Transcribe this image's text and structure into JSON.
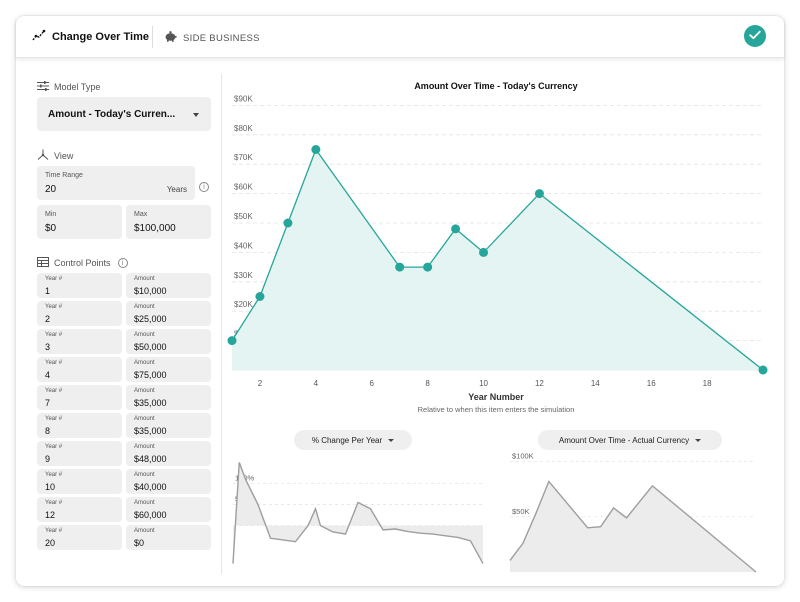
{
  "header": {
    "main_tab_label": "Change Over Time",
    "main_tab_icon": "trend-line-icon",
    "side_tab_label": "SIDE BUSINESS",
    "side_tab_icon": "piggy-bank-icon",
    "confirm_icon": "check-icon"
  },
  "colors": {
    "accent": "#26a69a",
    "accent_fill": "#e4f4f2",
    "field_bg": "#efefef",
    "mini_line": "#9e9e9e",
    "mini_fill": "#ececec"
  },
  "sidebar": {
    "model_type": {
      "label": "Model Type",
      "value": "Amount - Today's Curren..."
    },
    "view": {
      "label": "View",
      "time_range": {
        "label": "Time Range",
        "value": "20",
        "unit": "Years"
      },
      "min": {
        "label": "Min",
        "value": "$0"
      },
      "max": {
        "label": "Max",
        "value": "$100,000"
      }
    },
    "control_points": {
      "label": "Control Points",
      "year_label": "Year #",
      "amount_label": "Amount",
      "rows": [
        {
          "year": "1",
          "amount": "$10,000"
        },
        {
          "year": "2",
          "amount": "$25,000"
        },
        {
          "year": "3",
          "amount": "$50,000"
        },
        {
          "year": "4",
          "amount": "$75,000"
        },
        {
          "year": "7",
          "amount": "$35,000"
        },
        {
          "year": "8",
          "amount": "$35,000"
        },
        {
          "year": "9",
          "amount": "$48,000"
        },
        {
          "year": "10",
          "amount": "$40,000"
        },
        {
          "year": "12",
          "amount": "$60,000"
        },
        {
          "year": "20",
          "amount": "$0"
        }
      ]
    }
  },
  "chart_data": [
    {
      "type": "area",
      "title": "Amount Over Time - Today's Currency",
      "xlabel": "Year Number",
      "subtitle": "Relative to when this item enters the simulation",
      "x": [
        1,
        2,
        3,
        4,
        7,
        8,
        9,
        10,
        12,
        20
      ],
      "values": [
        10000,
        25000,
        50000,
        75000,
        35000,
        35000,
        48000,
        40000,
        60000,
        0
      ],
      "xlim": [
        1,
        20
      ],
      "ylim": [
        0,
        100000
      ],
      "x_ticks": [
        2,
        4,
        6,
        8,
        10,
        12,
        14,
        16,
        18
      ],
      "x_tick_labels": [
        "2",
        "4",
        "6",
        "8",
        "10",
        "12",
        "14",
        "16",
        "18"
      ],
      "y_ticks": [
        10000,
        20000,
        30000,
        40000,
        50000,
        60000,
        70000,
        80000,
        90000
      ],
      "y_tick_labels": [
        "$10K",
        "$20K",
        "$30K",
        "$40K",
        "$50K",
        "$60K",
        "$70K",
        "$80K",
        "$90K"
      ],
      "grid": true
    },
    {
      "type": "area",
      "selector_label": "% Change Per Year",
      "x": [
        0,
        0.5,
        1,
        2,
        3,
        4,
        5,
        6,
        6.6,
        7,
        8,
        9,
        10,
        11,
        12,
        13,
        14,
        15,
        16,
        17,
        18,
        19,
        20
      ],
      "values": [
        -90,
        150,
        110,
        50,
        -30,
        -34,
        -38,
        0,
        40,
        0,
        -15,
        -20,
        55,
        40,
        -10,
        -8,
        -14,
        -18,
        -20,
        -24,
        -28,
        -36,
        -90
      ],
      "ylim": [
        -110,
        170
      ],
      "y_ticks": [
        0,
        50,
        100
      ],
      "y_tick_labels": [
        "0%",
        "50%",
        "100%"
      ],
      "grid": true
    },
    {
      "type": "area",
      "selector_label": "Amount Over Time - Actual Currency",
      "x": [
        1,
        2,
        3,
        4,
        7,
        8,
        9,
        10,
        12,
        20
      ],
      "values": [
        10500,
        26000,
        53000,
        82000,
        40000,
        41000,
        58000,
        49000,
        78000,
        0
      ],
      "ylim": [
        0,
        105000
      ],
      "y_ticks": [
        50000,
        100000
      ],
      "y_tick_labels": [
        "$50K",
        "$100K"
      ],
      "grid": true
    }
  ]
}
